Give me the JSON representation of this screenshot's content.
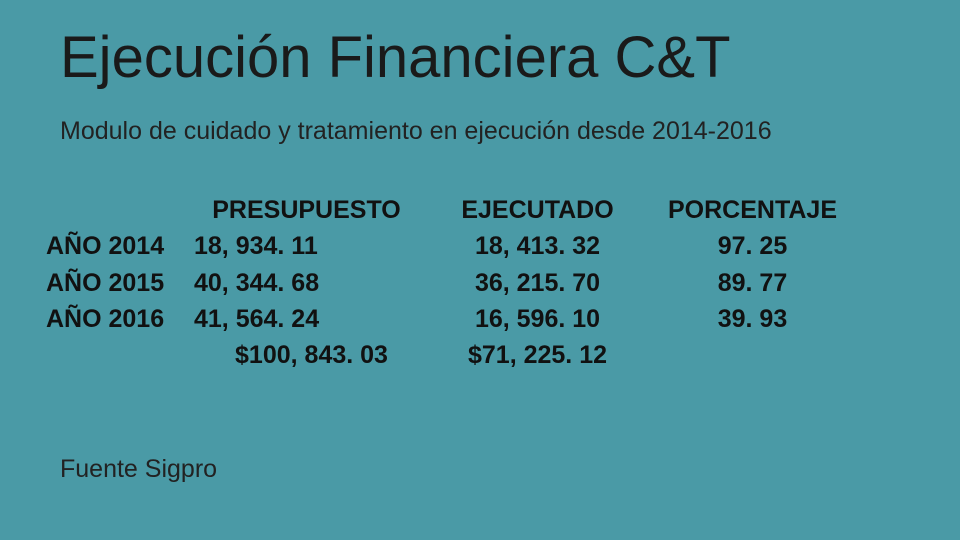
{
  "background_color": "#4a9aa6",
  "title": "Ejecución Financiera C&T",
  "subtitle": "Modulo de cuidado y tratamiento en ejecución desde 2014-2016",
  "table": {
    "columns": [
      "",
      "PRESUPUESTO",
      "EJECUTADO",
      "PORCENTAJE"
    ],
    "rows": [
      {
        "year": "AÑO 2014",
        "budget": "18, 934. 11",
        "executed": "18, 413. 32",
        "pct": "97. 25"
      },
      {
        "year": "AÑO 2015",
        "budget": "40, 344. 68",
        "executed": "36, 215. 70",
        "pct": "89. 77"
      },
      {
        "year": "AÑO 2016",
        "budget": "41, 564. 24",
        "executed": "16, 596. 10",
        "pct": "39. 93"
      }
    ],
    "totals": {
      "budget": "$100, 843. 03",
      "executed": "$71, 225. 12"
    },
    "font_size": 25,
    "font_weight": 600,
    "text_color": "#111111"
  },
  "source": "Fuente Sigpro"
}
